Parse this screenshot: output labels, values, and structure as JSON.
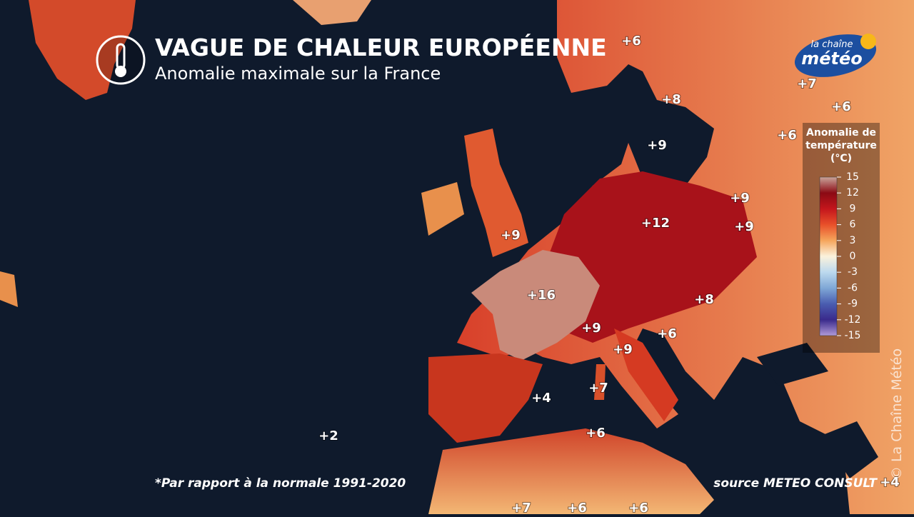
{
  "header": {
    "title": "VAGUE DE CHALEUR EUROPÉENNE",
    "subtitle": "Anomalie maximale sur la France"
  },
  "logo": {
    "top": "la chaîne",
    "bottom": "météo"
  },
  "map_labels": [
    "+6",
    "+8",
    "+9",
    "+7",
    "+6",
    "+6",
    "+9",
    "+9",
    "+12",
    "+9",
    "+16",
    "+8",
    "+9",
    "+6",
    "+9",
    "+7",
    "+4",
    "+2",
    "+6",
    "+4",
    "+7",
    "+6",
    "+6"
  ],
  "legend": {
    "title_lines": [
      "Anomalie de",
      "température",
      "(°C)"
    ],
    "ticks": [
      15,
      12,
      9,
      6,
      3,
      0,
      -3,
      -6,
      -9,
      -12,
      -15
    ]
  },
  "footnote": "*Par rapport à la normale 1991-2020",
  "source": "source METEO CONSULT",
  "watermark": "© La Chaîne Météo"
}
